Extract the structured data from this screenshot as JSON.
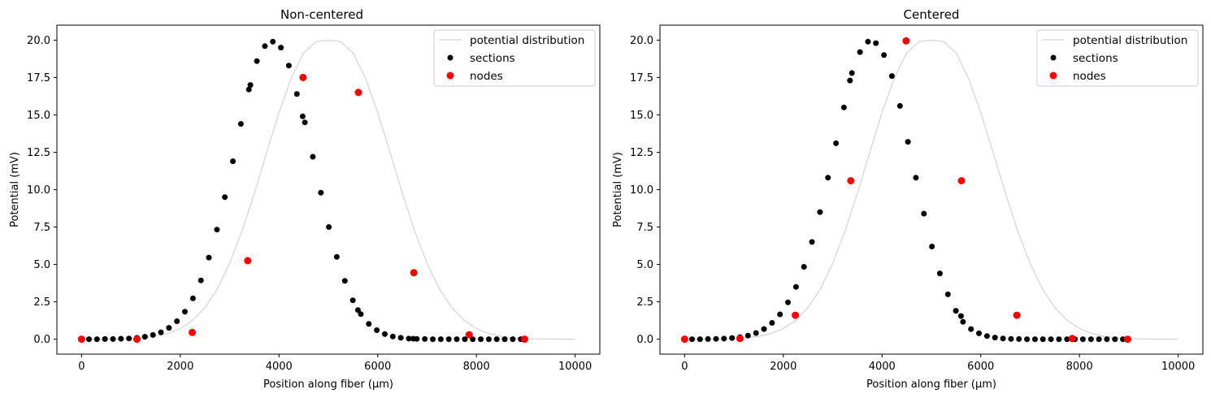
{
  "chart_data": [
    {
      "type": "scatter",
      "title": "Non-centered",
      "xlabel": "Position along fiber (µm)",
      "ylabel": "Potential (mV)",
      "xlim": [
        -500,
        10500
      ],
      "ylim": [
        -1.0,
        21.0
      ],
      "xticks": [
        0,
        2000,
        4000,
        6000,
        8000,
        10000
      ],
      "yticks": [
        0.0,
        2.5,
        5.0,
        7.5,
        10.0,
        12.5,
        15.0,
        17.5,
        20.0
      ],
      "xtick_labels": [
        "0",
        "2000",
        "4000",
        "6000",
        "8000",
        "10000"
      ],
      "ytick_labels": [
        "0.0",
        "2.5",
        "5.0",
        "7.5",
        "10.0",
        "12.5",
        "15.0",
        "17.5",
        "20.0"
      ],
      "legend_position": "top-right",
      "grid": false,
      "series": [
        {
          "name": "potential distribution",
          "kind": "line",
          "color": "#d3d3d3",
          "x": [
            0,
            250,
            500,
            750,
            1000,
            1250,
            1500,
            1750,
            2000,
            2250,
            2500,
            2750,
            3000,
            3250,
            3500,
            3750,
            4000,
            4250,
            4500,
            4750,
            5000,
            5250,
            5500,
            5750,
            6000,
            6250,
            6500,
            6750,
            7000,
            7250,
            7500,
            7750,
            8000,
            8250,
            8500,
            8750,
            9000,
            9250,
            9500,
            9750,
            10000
          ],
          "y": [
            0.0,
            0.0,
            0.01,
            0.02,
            0.04,
            0.09,
            0.19,
            0.38,
            0.71,
            1.26,
            2.11,
            3.36,
            5.07,
            7.22,
            9.76,
            12.48,
            15.16,
            17.48,
            19.14,
            19.9,
            20.0,
            19.9,
            19.14,
            17.48,
            15.16,
            12.48,
            9.76,
            7.22,
            5.07,
            3.36,
            2.11,
            1.26,
            0.71,
            0.38,
            0.19,
            0.09,
            0.04,
            0.02,
            0.01,
            0.0,
            0.0
          ]
        },
        {
          "name": "sections",
          "kind": "scatter",
          "color": "#000000",
          "x": [
            0,
            150,
            312,
            474,
            636,
            798,
            960,
            1122,
            1284,
            1446,
            1608,
            1770,
            1932,
            2094,
            2256,
            2418,
            2580,
            2742,
            2904,
            3066,
            3228,
            3390,
            3420,
            3552,
            3714,
            3876,
            4038,
            4200,
            4362,
            4480,
            4524,
            4686,
            4848,
            5010,
            5172,
            5334,
            5496,
            5600,
            5658,
            5820,
            5982,
            6144,
            6306,
            6468,
            6630,
            6720,
            6792,
            6954,
            7116,
            7278,
            7440,
            7602,
            7764,
            7926,
            8088,
            8250,
            8412,
            8574,
            8736,
            8898
          ],
          "y": [
            0.0,
            0.0,
            0.0,
            0.01,
            0.01,
            0.03,
            0.05,
            0.09,
            0.16,
            0.28,
            0.46,
            0.76,
            1.2,
            1.84,
            2.73,
            3.93,
            5.46,
            7.33,
            9.5,
            11.9,
            14.4,
            16.7,
            17.0,
            18.6,
            19.6,
            19.9,
            19.5,
            18.3,
            16.4,
            14.9,
            14.5,
            12.2,
            9.8,
            7.5,
            5.5,
            3.9,
            2.6,
            1.95,
            1.68,
            1.02,
            0.6,
            0.34,
            0.18,
            0.09,
            0.04,
            0.03,
            0.02,
            0.01,
            0.0,
            0.0,
            0.0,
            0.0,
            0.0,
            0.0,
            0.0,
            0.0,
            0.0,
            0.0,
            0.0,
            0.0
          ]
        },
        {
          "name": "nodes",
          "kind": "scatter",
          "color": "#ff0000",
          "x": [
            0,
            1122,
            2244,
            3366,
            4488,
            5610,
            6732,
            7854,
            8976
          ],
          "y": [
            0.0,
            0.0,
            0.45,
            5.25,
            17.5,
            16.5,
            4.45,
            0.3,
            0.0
          ]
        }
      ]
    },
    {
      "type": "scatter",
      "title": "Centered",
      "xlabel": "Position along fiber (µm)",
      "ylabel": "Potential (mV)",
      "xlim": [
        -500,
        10500
      ],
      "ylim": [
        -1.0,
        21.0
      ],
      "xticks": [
        0,
        2000,
        4000,
        6000,
        8000,
        10000
      ],
      "yticks": [
        0.0,
        2.5,
        5.0,
        7.5,
        10.0,
        12.5,
        15.0,
        17.5,
        20.0
      ],
      "xtick_labels": [
        "0",
        "2000",
        "4000",
        "6000",
        "8000",
        "10000"
      ],
      "ytick_labels": [
        "0.0",
        "2.5",
        "5.0",
        "7.5",
        "10.0",
        "12.5",
        "15.0",
        "17.5",
        "20.0"
      ],
      "legend_position": "top-right",
      "grid": false,
      "series": [
        {
          "name": "potential distribution",
          "kind": "line",
          "color": "#d3d3d3",
          "x": [
            0,
            250,
            500,
            750,
            1000,
            1250,
            1500,
            1750,
            2000,
            2250,
            2500,
            2750,
            3000,
            3250,
            3500,
            3750,
            4000,
            4250,
            4500,
            4750,
            5000,
            5250,
            5500,
            5750,
            6000,
            6250,
            6500,
            6750,
            7000,
            7250,
            7500,
            7750,
            8000,
            8250,
            8500,
            8750,
            9000,
            9250,
            9500,
            9750,
            10000
          ],
          "y": [
            0.0,
            0.0,
            0.01,
            0.02,
            0.04,
            0.09,
            0.19,
            0.38,
            0.71,
            1.26,
            2.11,
            3.36,
            5.07,
            7.22,
            9.76,
            12.48,
            15.16,
            17.48,
            19.14,
            19.9,
            20.0,
            19.9,
            19.14,
            17.48,
            15.16,
            12.48,
            9.76,
            7.22,
            5.07,
            3.36,
            2.11,
            1.26,
            0.71,
            0.38,
            0.19,
            0.09,
            0.04,
            0.02,
            0.01,
            0.0,
            0.0
          ]
        },
        {
          "name": "sections",
          "kind": "scatter",
          "color": "#000000",
          "x": [
            0,
            150,
            312,
            474,
            636,
            798,
            960,
            1122,
            1284,
            1446,
            1608,
            1770,
            1932,
            2094,
            2256,
            2418,
            2580,
            2742,
            2904,
            3066,
            3228,
            3350,
            3390,
            3552,
            3714,
            3876,
            4038,
            4200,
            4362,
            4524,
            4686,
            4848,
            5010,
            5172,
            5334,
            5496,
            5600,
            5640,
            5802,
            5964,
            6126,
            6288,
            6450,
            6612,
            6774,
            6936,
            7098,
            7260,
            7422,
            7584,
            7746,
            7908,
            8070,
            8232,
            8394,
            8556,
            8718,
            8880
          ],
          "y": [
            0.0,
            0.0,
            0.0,
            0.01,
            0.02,
            0.04,
            0.08,
            0.14,
            0.24,
            0.41,
            0.68,
            1.09,
            1.66,
            2.46,
            3.5,
            4.84,
            6.5,
            8.5,
            10.8,
            13.1,
            15.5,
            17.3,
            17.8,
            19.2,
            19.9,
            19.8,
            19.0,
            17.6,
            15.6,
            13.2,
            10.8,
            8.4,
            6.2,
            4.4,
            3.0,
            1.9,
            1.55,
            1.16,
            0.68,
            0.39,
            0.21,
            0.11,
            0.05,
            0.02,
            0.01,
            0.0,
            0.0,
            0.0,
            0.0,
            0.0,
            0.0,
            0.0,
            0.0,
            0.0,
            0.0,
            0.0,
            0.0,
            0.0
          ]
        },
        {
          "name": "nodes",
          "kind": "scatter",
          "color": "#ff0000",
          "x": [
            0,
            1122,
            2244,
            3366,
            4488,
            5610,
            6732,
            7854,
            8976
          ],
          "y": [
            0.0,
            0.05,
            1.6,
            10.6,
            19.95,
            10.6,
            1.6,
            0.05,
            0.0
          ]
        }
      ]
    }
  ]
}
